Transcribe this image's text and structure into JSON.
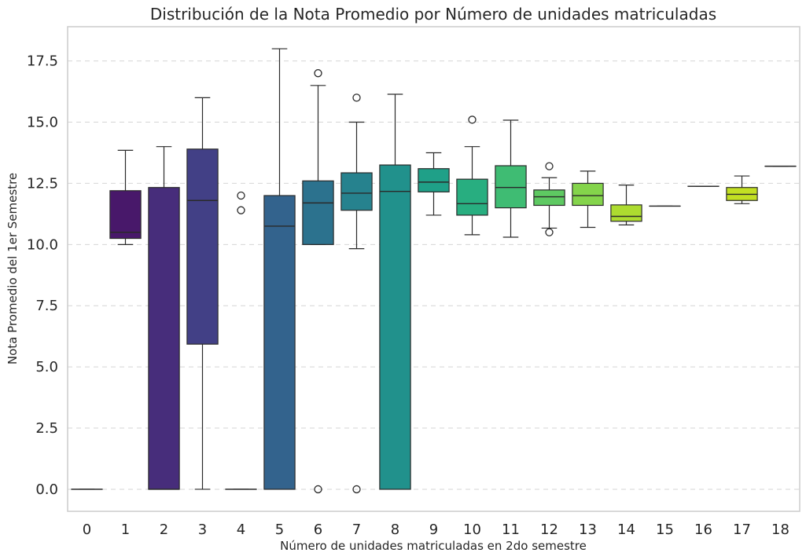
{
  "chart_data": {
    "type": "box",
    "title": "Distribución de la Nota Promedio por Número de unidades matriculadas",
    "xlabel": "Número de unidades matriculadas en 2do semestre",
    "ylabel": "Nota Promedio del 1er Semestre",
    "ylim": [
      -0.9,
      18.9
    ],
    "yticks": [
      "0.0",
      "2.5",
      "5.0",
      "7.5",
      "10.0",
      "12.5",
      "15.0",
      "17.5"
    ],
    "grid": "horizontal-dashed",
    "categories": [
      "0",
      "1",
      "2",
      "3",
      "4",
      "5",
      "6",
      "7",
      "8",
      "9",
      "10",
      "11",
      "12",
      "13",
      "14",
      "15",
      "16",
      "17",
      "18"
    ],
    "boxes": [
      {
        "category": "0",
        "min": 0.0,
        "q1": 0.0,
        "median": 0.0,
        "q3": 0.0,
        "max": 0.0,
        "outliers": [],
        "color": "#440154"
      },
      {
        "category": "1",
        "min": 10.0,
        "q1": 10.25,
        "median": 10.5,
        "q3": 12.2,
        "max": 13.85,
        "outliers": [],
        "color": "#48186a"
      },
      {
        "category": "2",
        "min": 0.0,
        "q1": 0.0,
        "median": 0.0,
        "q3": 12.33,
        "max": 14.0,
        "outliers": [],
        "color": "#472d7b"
      },
      {
        "category": "3",
        "min": 0.0,
        "q1": 5.93,
        "median": 11.8,
        "q3": 13.9,
        "max": 16.0,
        "outliers": [],
        "color": "#424086"
      },
      {
        "category": "4",
        "min": 0.0,
        "q1": 0.0,
        "median": 0.0,
        "q3": 0.0,
        "max": 0.0,
        "outliers": [
          11.4,
          12.0
        ],
        "color": "#3b528b"
      },
      {
        "category": "5",
        "min": 0.0,
        "q1": 0.0,
        "median": 10.75,
        "q3": 12.0,
        "max": 18.0,
        "outliers": [],
        "color": "#33638d"
      },
      {
        "category": "6",
        "min": 10.0,
        "q1": 10.0,
        "median": 11.7,
        "q3": 12.6,
        "max": 16.5,
        "outliers": [
          17.0,
          0.0
        ],
        "color": "#2c728e"
      },
      {
        "category": "7",
        "min": 9.83,
        "q1": 11.4,
        "median": 12.1,
        "q3": 12.93,
        "max": 15.0,
        "outliers": [
          16.0,
          0.0
        ],
        "color": "#26828e"
      },
      {
        "category": "8",
        "min": 0.0,
        "q1": 0.0,
        "median": 12.17,
        "q3": 13.25,
        "max": 16.14,
        "outliers": [],
        "color": "#21918c"
      },
      {
        "category": "9",
        "min": 11.2,
        "q1": 12.15,
        "median": 12.55,
        "q3": 13.1,
        "max": 13.75,
        "outliers": [],
        "color": "#1fa088"
      },
      {
        "category": "10",
        "min": 10.4,
        "q1": 11.2,
        "median": 11.67,
        "q3": 12.67,
        "max": 14.0,
        "outliers": [
          15.1
        ],
        "color": "#28ae80"
      },
      {
        "category": "11",
        "min": 10.3,
        "q1": 11.5,
        "median": 12.33,
        "q3": 13.22,
        "max": 15.08,
        "outliers": [],
        "color": "#3fbc73"
      },
      {
        "category": "12",
        "min": 10.67,
        "q1": 11.6,
        "median": 11.95,
        "q3": 12.23,
        "max": 12.73,
        "outliers": [
          13.2,
          10.5
        ],
        "color": "#5ec962"
      },
      {
        "category": "13",
        "min": 10.7,
        "q1": 11.6,
        "median": 12.0,
        "q3": 12.5,
        "max": 13.0,
        "outliers": [],
        "color": "#84d44b"
      },
      {
        "category": "14",
        "min": 10.8,
        "q1": 10.95,
        "median": 11.15,
        "q3": 11.62,
        "max": 12.43,
        "outliers": [],
        "color": "#addc30"
      },
      {
        "category": "15",
        "min": 11.57,
        "q1": 11.57,
        "median": 11.57,
        "q3": 11.57,
        "max": 11.57,
        "outliers": [],
        "color": "#d8e219"
      },
      {
        "category": "16",
        "min": 12.38,
        "q1": 12.38,
        "median": 12.38,
        "q3": 12.38,
        "max": 12.38,
        "outliers": [],
        "color": "#fde725"
      },
      {
        "category": "17",
        "min": 11.67,
        "q1": 11.8,
        "median": 12.05,
        "q3": 12.33,
        "max": 12.8,
        "outliers": [],
        "color": "#c2df23"
      },
      {
        "category": "18",
        "min": 13.2,
        "q1": 13.2,
        "median": 13.2,
        "q3": 13.2,
        "max": 13.2,
        "outliers": [],
        "color": "#fde725"
      }
    ]
  }
}
